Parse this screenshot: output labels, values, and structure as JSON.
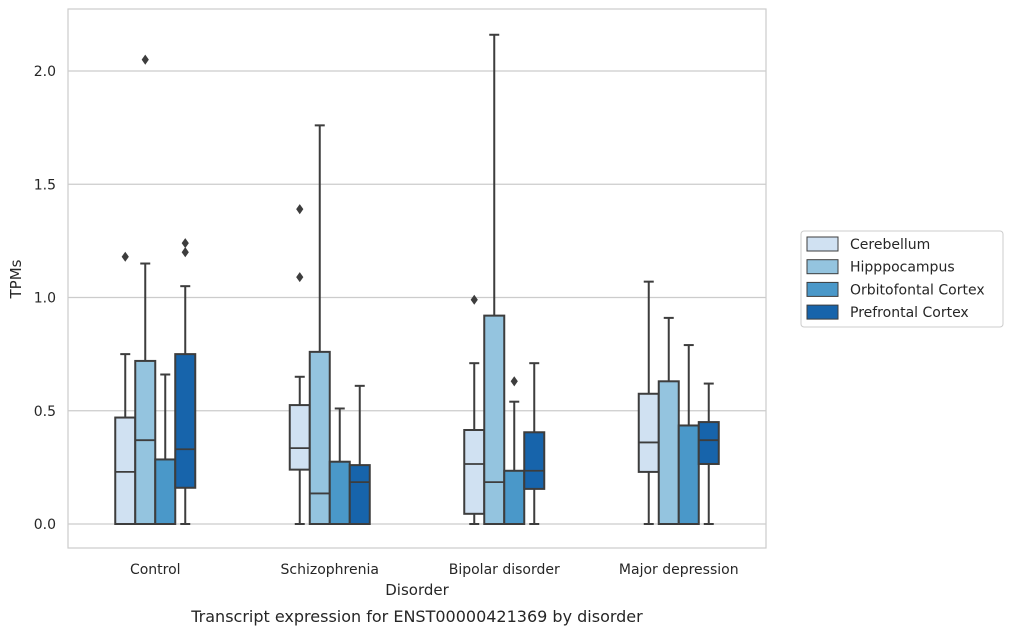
{
  "chart_data": {
    "type": "box",
    "title": "",
    "caption": "Transcript expression for ENST00000421369 by disorder",
    "xlabel": "Disorder",
    "ylabel": "TPMs",
    "ylim": [
      -0.1,
      2.28
    ],
    "yticks": [
      0.0,
      0.5,
      1.0,
      1.5,
      2.0
    ],
    "ytick_labels": [
      "0.0",
      "0.5",
      "1.0",
      "1.5",
      "2.0"
    ],
    "grid": "horizontal",
    "legend_position": "right",
    "categories": [
      "Control",
      "Schizophrenia",
      "Bipolar disorder",
      "Major depression"
    ],
    "series": [
      {
        "name": "Cerebellum",
        "color": "#d0e1f2",
        "boxes": [
          {
            "whisker_low": 0.0,
            "q1": 0.0,
            "median": 0.23,
            "q3": 0.47,
            "whisker_high": 0.75,
            "outliers": [
              1.18
            ]
          },
          {
            "whisker_low": 0.0,
            "q1": 0.24,
            "median": 0.335,
            "q3": 0.525,
            "whisker_high": 0.65,
            "outliers": [
              1.09,
              1.39
            ]
          },
          {
            "whisker_low": 0.0,
            "q1": 0.045,
            "median": 0.265,
            "q3": 0.415,
            "whisker_high": 0.71,
            "outliers": [
              0.99
            ]
          },
          {
            "whisker_low": 0.0,
            "q1": 0.23,
            "median": 0.36,
            "q3": 0.575,
            "whisker_high": 1.07,
            "outliers": []
          }
        ]
      },
      {
        "name": "Hipppocampus",
        "color": "#94c4df",
        "boxes": [
          {
            "whisker_low": 0.0,
            "q1": 0.0,
            "median": 0.37,
            "q3": 0.72,
            "whisker_high": 1.15,
            "outliers": [
              2.05
            ]
          },
          {
            "whisker_low": 0.0,
            "q1": 0.0,
            "median": 0.135,
            "q3": 0.76,
            "whisker_high": 1.76,
            "outliers": []
          },
          {
            "whisker_low": 0.0,
            "q1": 0.0,
            "median": 0.185,
            "q3": 0.92,
            "whisker_high": 2.16,
            "outliers": []
          },
          {
            "whisker_low": 0.0,
            "q1": 0.0,
            "median": 0.0,
            "q3": 0.63,
            "whisker_high": 0.91,
            "outliers": []
          }
        ]
      },
      {
        "name": "Orbitofontal Cortex",
        "color": "#4a98c9",
        "boxes": [
          {
            "whisker_low": 0.0,
            "q1": 0.0,
            "median": 0.0,
            "q3": 0.285,
            "whisker_high": 0.66,
            "outliers": []
          },
          {
            "whisker_low": 0.0,
            "q1": 0.0,
            "median": 0.0,
            "q3": 0.275,
            "whisker_high": 0.51,
            "outliers": []
          },
          {
            "whisker_low": 0.0,
            "q1": 0.0,
            "median": 0.0,
            "q3": 0.235,
            "whisker_high": 0.54,
            "outliers": [
              0.63
            ]
          },
          {
            "whisker_low": 0.0,
            "q1": 0.0,
            "median": 0.0,
            "q3": 0.435,
            "whisker_high": 0.79,
            "outliers": []
          }
        ]
      },
      {
        "name": "Prefrontal Cortex",
        "color": "#1764ab",
        "boxes": [
          {
            "whisker_low": 0.0,
            "q1": 0.16,
            "median": 0.33,
            "q3": 0.75,
            "whisker_high": 1.05,
            "outliers": [
              1.2,
              1.24
            ]
          },
          {
            "whisker_low": 0.0,
            "q1": 0.0,
            "median": 0.185,
            "q3": 0.26,
            "whisker_high": 0.61,
            "outliers": []
          },
          {
            "whisker_low": 0.0,
            "q1": 0.155,
            "median": 0.235,
            "q3": 0.405,
            "whisker_high": 0.71,
            "outliers": []
          },
          {
            "whisker_low": 0.0,
            "q1": 0.265,
            "median": 0.37,
            "q3": 0.45,
            "whisker_high": 0.62,
            "outliers": []
          }
        ]
      }
    ],
    "colors": {
      "grid": "#cccccc",
      "frame": "#cccccc",
      "box_edge": "#3d3d3d",
      "text": "#262626"
    }
  }
}
